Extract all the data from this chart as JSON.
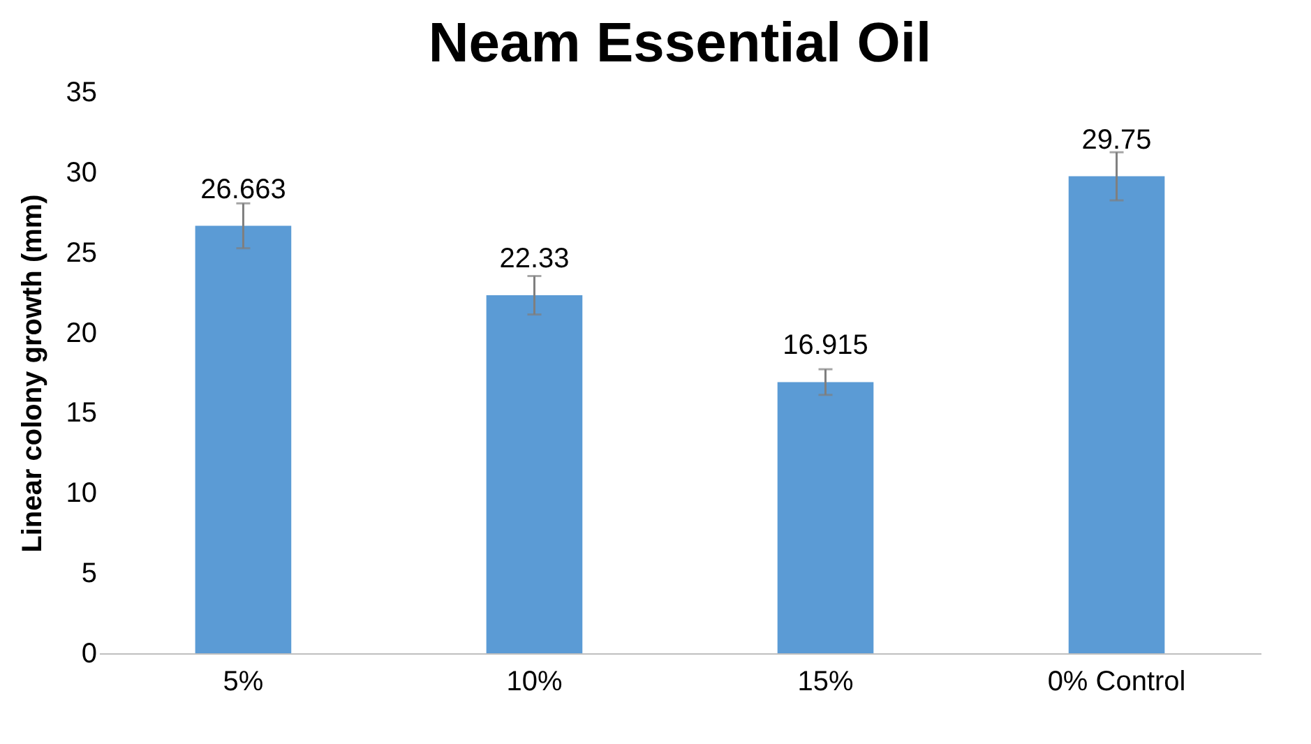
{
  "chart_data": {
    "type": "bar",
    "title": "Neam Essential Oil",
    "ylabel": "Linear colony growth (mm)",
    "categories": [
      "5%",
      "10%",
      "15%",
      "0% Control"
    ],
    "values": [
      26.663,
      22.33,
      16.915,
      29.75
    ],
    "errors": [
      1.4,
      1.2,
      0.8,
      1.5
    ],
    "color": "#5b9bd5",
    "data_labels": true,
    "ylim": [
      0,
      35
    ],
    "yticks": [
      0,
      5,
      10,
      15,
      20,
      25,
      30,
      35
    ],
    "grid": false
  }
}
